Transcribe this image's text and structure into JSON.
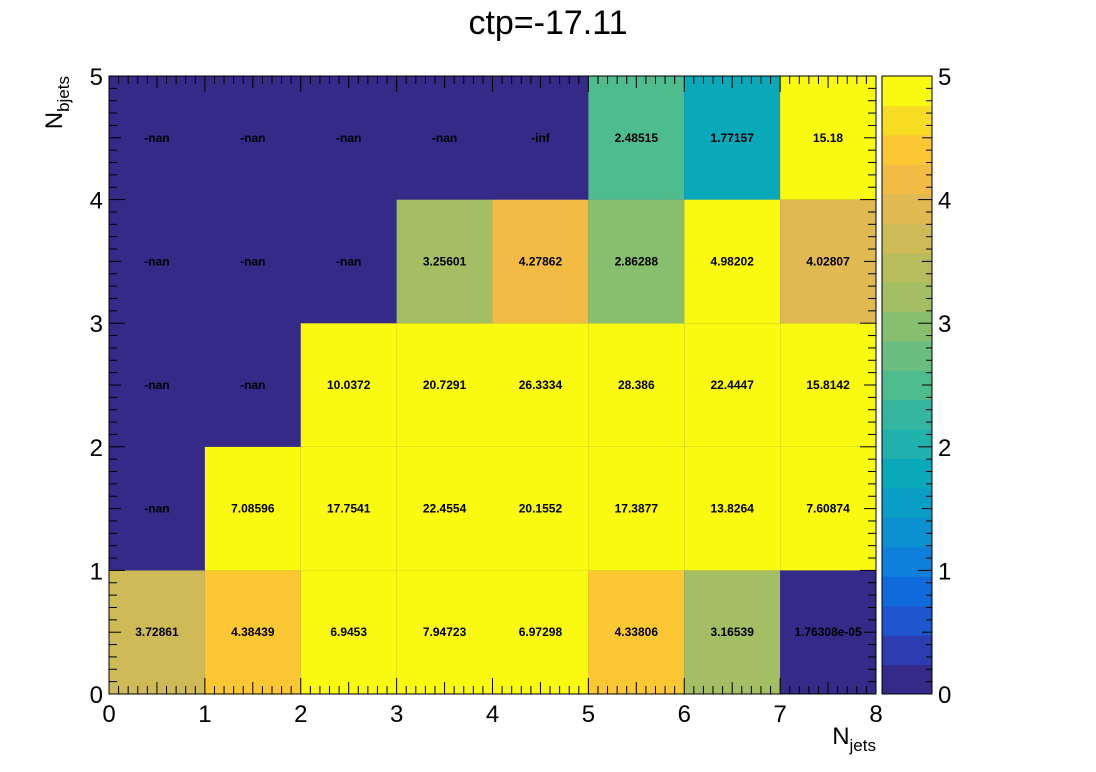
{
  "chart_data": {
    "type": "heatmap",
    "title": "ctp=-17.11",
    "xlabel": {
      "main": "N",
      "sub": "jets"
    },
    "ylabel": {
      "main": "N",
      "sub": "bjets"
    },
    "x_ticks": [
      "0",
      "1",
      "2",
      "3",
      "4",
      "5",
      "6",
      "7",
      "8"
    ],
    "y_ticks": [
      "0",
      "1",
      "2",
      "3",
      "4",
      "5"
    ],
    "colorbar_ticks": [
      "0",
      "1",
      "2",
      "3",
      "4",
      "5"
    ],
    "xlim": [
      0,
      8
    ],
    "ylim": [
      0,
      5
    ],
    "zlim": [
      0,
      5
    ],
    "x_bins": [
      0,
      1,
      2,
      3,
      4,
      5,
      6,
      7
    ],
    "y_bins": [
      0,
      1,
      2,
      3,
      4
    ],
    "cells": [
      {
        "x": 0,
        "y": 0,
        "label": "3.72861",
        "value": 3.72861
      },
      {
        "x": 1,
        "y": 0,
        "label": "4.38439",
        "value": 4.38439
      },
      {
        "x": 2,
        "y": 0,
        "label": "6.9453",
        "value": 6.9453
      },
      {
        "x": 3,
        "y": 0,
        "label": "7.94723",
        "value": 7.94723
      },
      {
        "x": 4,
        "y": 0,
        "label": "6.97298",
        "value": 6.97298
      },
      {
        "x": 5,
        "y": 0,
        "label": "4.33806",
        "value": 4.33806
      },
      {
        "x": 6,
        "y": 0,
        "label": "3.16539",
        "value": 3.16539
      },
      {
        "x": 7,
        "y": 0,
        "label": "1.76308e-05",
        "value": 1.76308e-05
      },
      {
        "x": 0,
        "y": 1,
        "label": "-nan",
        "value": null
      },
      {
        "x": 1,
        "y": 1,
        "label": "7.08596",
        "value": 7.08596
      },
      {
        "x": 2,
        "y": 1,
        "label": "17.7541",
        "value": 17.7541
      },
      {
        "x": 3,
        "y": 1,
        "label": "22.4554",
        "value": 22.4554
      },
      {
        "x": 4,
        "y": 1,
        "label": "20.1552",
        "value": 20.1552
      },
      {
        "x": 5,
        "y": 1,
        "label": "17.3877",
        "value": 17.3877
      },
      {
        "x": 6,
        "y": 1,
        "label": "13.8264",
        "value": 13.8264
      },
      {
        "x": 7,
        "y": 1,
        "label": "7.60874",
        "value": 7.60874
      },
      {
        "x": 0,
        "y": 2,
        "label": "-nan",
        "value": null
      },
      {
        "x": 1,
        "y": 2,
        "label": "-nan",
        "value": null
      },
      {
        "x": 2,
        "y": 2,
        "label": "10.0372",
        "value": 10.0372
      },
      {
        "x": 3,
        "y": 2,
        "label": "20.7291",
        "value": 20.7291
      },
      {
        "x": 4,
        "y": 2,
        "label": "26.3334",
        "value": 26.3334
      },
      {
        "x": 5,
        "y": 2,
        "label": "28.386",
        "value": 28.386
      },
      {
        "x": 6,
        "y": 2,
        "label": "22.4447",
        "value": 22.4447
      },
      {
        "x": 7,
        "y": 2,
        "label": "15.8142",
        "value": 15.8142
      },
      {
        "x": 0,
        "y": 3,
        "label": "-nan",
        "value": null
      },
      {
        "x": 1,
        "y": 3,
        "label": "-nan",
        "value": null
      },
      {
        "x": 2,
        "y": 3,
        "label": "-nan",
        "value": null
      },
      {
        "x": 3,
        "y": 3,
        "label": "3.25601",
        "value": 3.25601
      },
      {
        "x": 4,
        "y": 3,
        "label": "4.27862",
        "value": 4.27862
      },
      {
        "x": 5,
        "y": 3,
        "label": "2.86288",
        "value": 2.86288
      },
      {
        "x": 6,
        "y": 3,
        "label": "4.98202",
        "value": 4.98202
      },
      {
        "x": 7,
        "y": 3,
        "label": "4.02807",
        "value": 4.02807
      },
      {
        "x": 0,
        "y": 4,
        "label": "-nan",
        "value": null
      },
      {
        "x": 1,
        "y": 4,
        "label": "-nan",
        "value": null
      },
      {
        "x": 2,
        "y": 4,
        "label": "-nan",
        "value": null
      },
      {
        "x": 3,
        "y": 4,
        "label": "-nan",
        "value": null
      },
      {
        "x": 4,
        "y": 4,
        "label": "-inf",
        "value": null
      },
      {
        "x": 5,
        "y": 4,
        "label": "2.48515",
        "value": 2.48515
      },
      {
        "x": 6,
        "y": 4,
        "label": "1.77157",
        "value": 1.77157
      },
      {
        "x": 7,
        "y": 4,
        "label": "15.18",
        "value": 15.18
      }
    ],
    "palette": [
      "#352a87",
      "#2b3db1",
      "#1f55cf",
      "#0f6bdc",
      "#0e7fdb",
      "#0d90d2",
      "#0a9dc6",
      "#09a9ba",
      "#20b1ad",
      "#35b79f",
      "#4fbc8e",
      "#6bbe7f",
      "#88bf6f",
      "#a3be63",
      "#b9bc5c",
      "#cebb58",
      "#e0b952",
      "#f2bb44",
      "#fbc733",
      "#f8db23",
      "#f9fa0f"
    ],
    "empty_color": "#352a87",
    "grid": false,
    "colorbar_position": "right"
  }
}
